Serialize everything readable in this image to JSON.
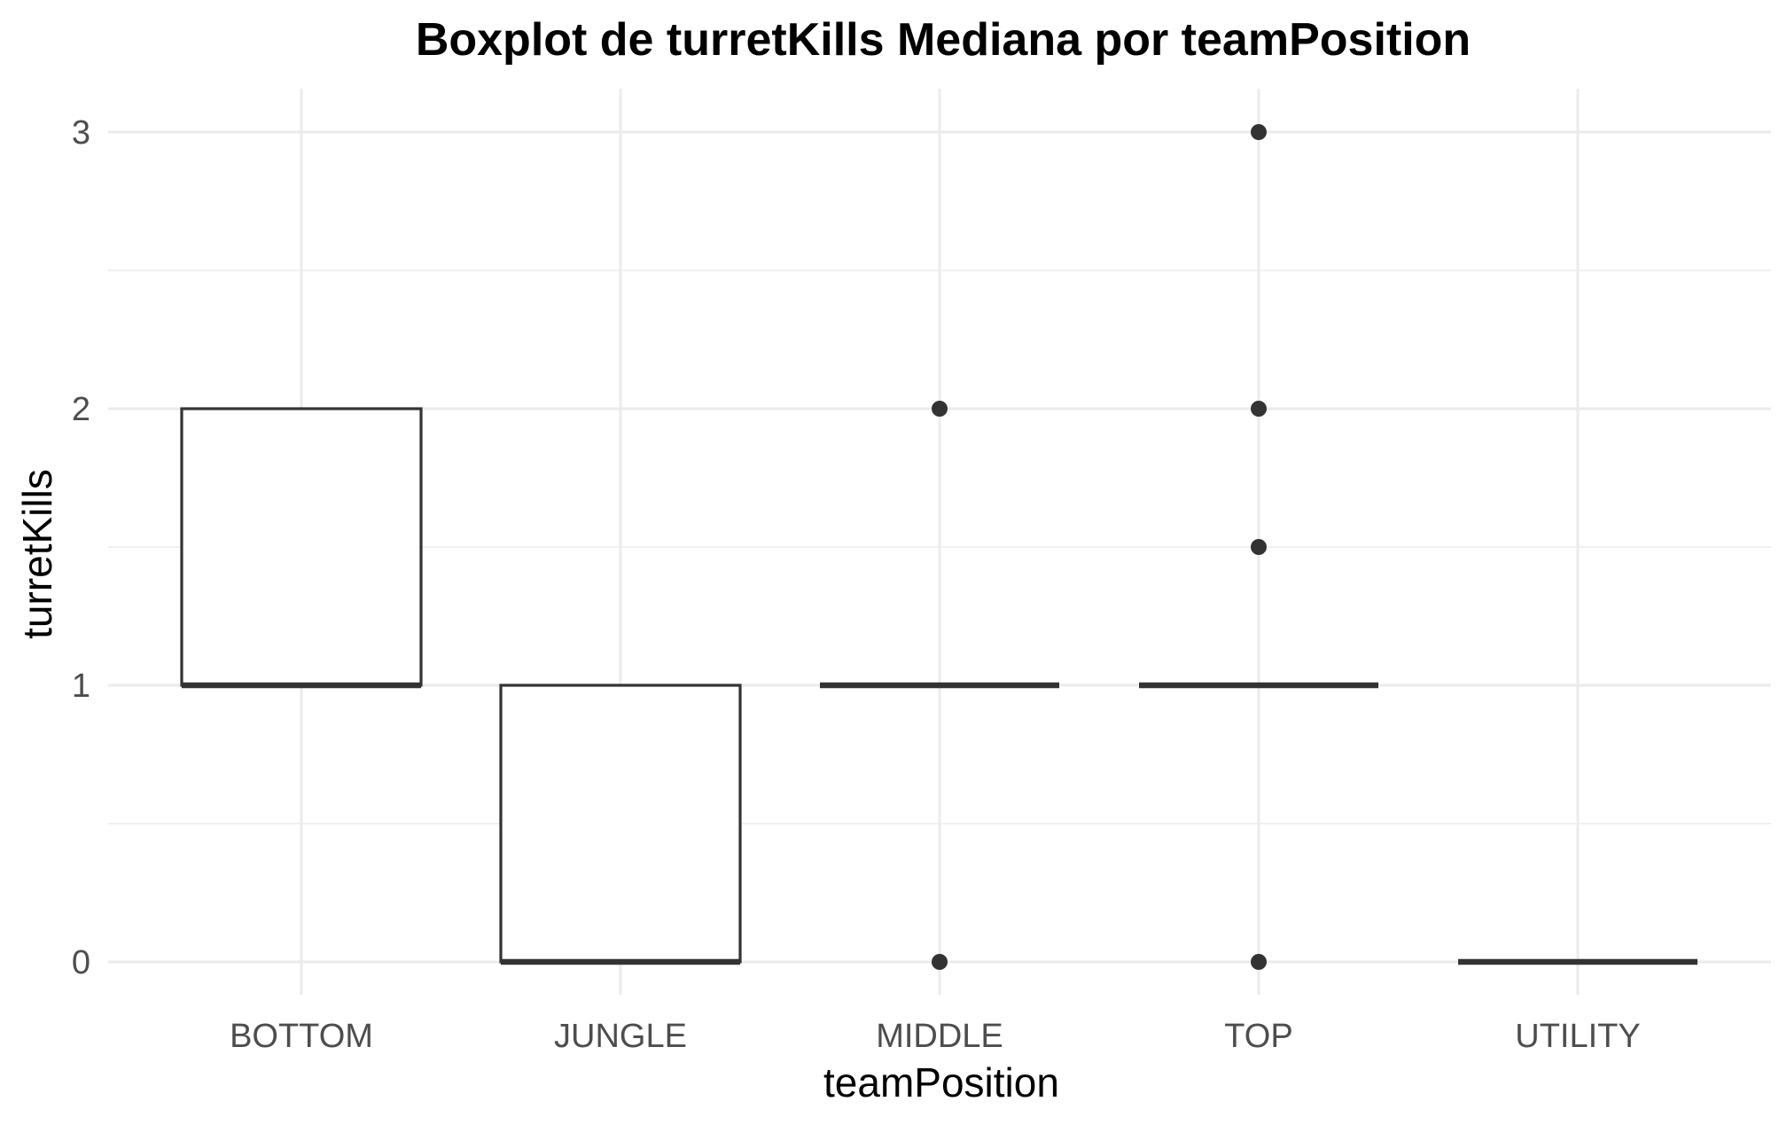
{
  "chart_data": {
    "type": "boxplot",
    "title": "Boxplot de turretKills Mediana por teamPosition",
    "xlabel": "teamPosition",
    "ylabel": "turretKills",
    "ylim": [
      -0.12,
      3.15
    ],
    "y_ticks": [
      0,
      1,
      2,
      3
    ],
    "grid": true,
    "categories": [
      "BOTTOM",
      "JUNGLE",
      "MIDDLE",
      "TOP",
      "UTILITY"
    ],
    "boxes": [
      {
        "category": "BOTTOM",
        "whisker_low": 1,
        "q1": 1,
        "median": 1,
        "q3": 2,
        "whisker_high": 2,
        "outliers": []
      },
      {
        "category": "JUNGLE",
        "whisker_low": 0,
        "q1": 0,
        "median": 0,
        "q3": 1,
        "whisker_high": 1,
        "outliers": []
      },
      {
        "category": "MIDDLE",
        "whisker_low": 1,
        "q1": 1,
        "median": 1,
        "q3": 1,
        "whisker_high": 1,
        "outliers": [
          0,
          2
        ]
      },
      {
        "category": "TOP",
        "whisker_low": 1,
        "q1": 1,
        "median": 1,
        "q3": 1,
        "whisker_high": 1,
        "outliers": [
          0,
          1.5,
          2,
          3
        ]
      },
      {
        "category": "UTILITY",
        "whisker_low": 0,
        "q1": 0,
        "median": 0,
        "q3": 0,
        "whisker_high": 0,
        "outliers": []
      }
    ],
    "colors": {
      "box_line": "#333333",
      "box_fill": "#ffffff",
      "grid": "#ebebeb",
      "tick_text": "#4d4d4d"
    }
  }
}
